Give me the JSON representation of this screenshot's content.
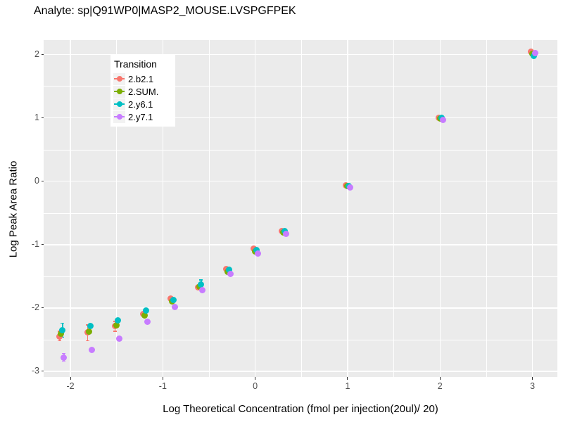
{
  "title": "Analyte: sp|Q91WP0|MASP2_MOUSE.LVSPGFPEK",
  "chart_data": {
    "type": "scatter",
    "title": "Analyte: sp|Q91WP0|MASP2_MOUSE.LVSPGFPEK",
    "xlabel": "Log Theoretical Concentration (fmol per injection(20ul)/ 20)",
    "ylabel": "Log Peak Area Ratio",
    "xlim": [
      -2.29,
      3.27
    ],
    "ylim": [
      -3.09,
      2.23
    ],
    "x_major_ticks": [
      -2,
      -1,
      0,
      1,
      2,
      3
    ],
    "x_minor_ticks": [
      -1.5,
      -0.5,
      0.5,
      1.5,
      2.5
    ],
    "y_major_ticks": [
      2,
      1,
      0,
      -1,
      -2,
      -3
    ],
    "y_minor_ticks": [
      1.5,
      0.5,
      -0.5,
      -1.5,
      -2.5
    ],
    "grid": true,
    "panel_bg": "#EBEBEB",
    "grid_color": "#FFFFFF",
    "tick_label_color": "#4D4D4D",
    "legend_title": "Transition",
    "legend_position": "inside-top-left",
    "x": [
      -2.1,
      -1.8,
      -1.5,
      -1.2,
      -0.9,
      -0.6,
      -0.3,
      0,
      0.3,
      1,
      2,
      3
    ],
    "series": [
      {
        "name": "2.b2.1",
        "color": "#F8766D",
        "values": [
          -2.45,
          -2.39,
          -2.29,
          -2.1,
          -1.85,
          -1.67,
          -1.39,
          -1.06,
          -0.78,
          -0.06,
          1.0,
          2.05
        ]
      },
      {
        "name": "2.SUM.",
        "color": "#7CAE00",
        "values": [
          -2.41,
          -2.37,
          -2.27,
          -2.12,
          -1.9,
          -1.66,
          -1.43,
          -1.11,
          -0.81,
          -0.08,
          0.99,
          2.01
        ]
      },
      {
        "name": "2.y6.1",
        "color": "#00BFC4",
        "values": [
          -2.35,
          -2.28,
          -2.2,
          -2.04,
          -1.87,
          -1.63,
          -1.4,
          -1.08,
          -0.79,
          -0.07,
          1.0,
          1.98
        ]
      },
      {
        "name": "2.y7.1",
        "color": "#C77CFF",
        "values": [
          -2.78,
          -2.66,
          -2.49,
          -2.22,
          -1.99,
          -1.72,
          -1.46,
          -1.14,
          -0.83,
          -0.1,
          0.97,
          2.03
        ]
      }
    ],
    "error_bars": [
      {
        "series": "2.b2.1",
        "x": -2.1,
        "lo": -2.52,
        "hi": -2.37
      },
      {
        "series": "2.y6.1",
        "x": -2.1,
        "lo": -2.46,
        "hi": -2.24
      },
      {
        "series": "2.y7.1",
        "x": -2.1,
        "lo": -2.84,
        "hi": -2.72
      },
      {
        "series": "2.b2.1",
        "x": -1.8,
        "lo": -2.52,
        "hi": -2.27
      },
      {
        "series": "2.b2.1",
        "x": -1.5,
        "lo": -2.37,
        "hi": -2.21
      },
      {
        "series": "2.y6.1",
        "x": -0.6,
        "lo": -1.7,
        "hi": -1.56
      }
    ]
  }
}
